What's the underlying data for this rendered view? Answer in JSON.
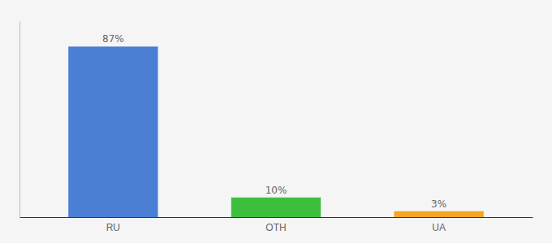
{
  "chart_data": {
    "type": "bar",
    "categories": [
      "RU",
      "OTH",
      "UA"
    ],
    "values": [
      87,
      10,
      3
    ],
    "value_labels": [
      "87%",
      "10%",
      "3%"
    ],
    "colors": [
      "#4a7fd4",
      "#3dbf3d",
      "#f5a623"
    ],
    "ylim": [
      0,
      100
    ],
    "data_labels": true,
    "tick_labels": "x"
  }
}
